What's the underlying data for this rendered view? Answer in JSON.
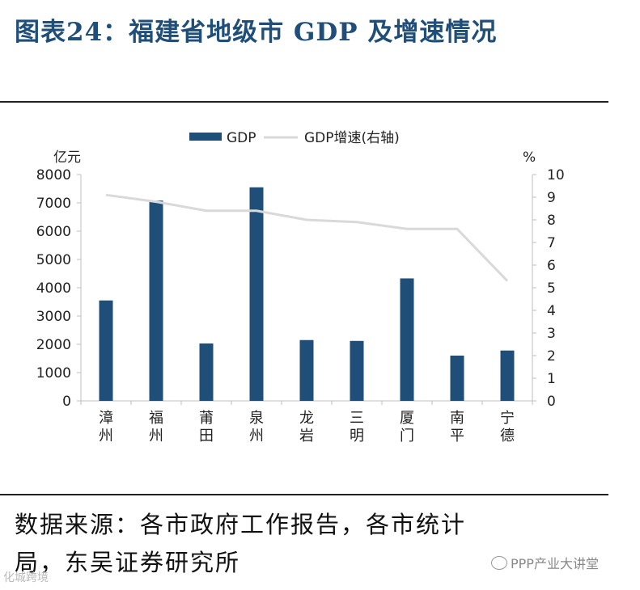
{
  "title": "图表24：福建省地级市 GDP 及增速情况",
  "source_line1": "数据来源：各市政府工作报告，各市统计",
  "source_line2": "局，东吴证券研究所",
  "watermark_left": "化城跨境",
  "watermark_right": "PPP产业大讲堂",
  "colors": {
    "bar": "#1f4e79",
    "line": "#d9d9d9",
    "title": "#1f4e79",
    "axis": "#bfbfbf"
  },
  "chart_data": {
    "type": "bar",
    "title": "",
    "categories": [
      "漳州",
      "福州",
      "莆田",
      "泉州",
      "龙岩",
      "三明",
      "厦门",
      "南平",
      "宁德"
    ],
    "series": [
      {
        "name": "GDP",
        "type": "bar",
        "axis": "left",
        "values": [
          3550,
          7080,
          2030,
          7550,
          2150,
          2120,
          4330,
          1600,
          1780
        ]
      },
      {
        "name": "GDP增速(右轴)",
        "type": "line",
        "axis": "right",
        "values": [
          9.1,
          8.8,
          8.4,
          8.4,
          8.0,
          7.9,
          7.6,
          7.6,
          5.3
        ]
      }
    ],
    "yleft": {
      "label": "亿元",
      "lim": [
        0,
        8000
      ],
      "ticks": [
        0,
        1000,
        2000,
        3000,
        4000,
        5000,
        6000,
        7000,
        8000
      ]
    },
    "yright": {
      "label": "%",
      "lim": [
        0,
        10
      ],
      "ticks": [
        0,
        1,
        2,
        3,
        4,
        5,
        6,
        7,
        8,
        9,
        10
      ]
    },
    "legend": [
      "GDP",
      "GDP增速(右轴)"
    ],
    "legend_position": "top"
  }
}
